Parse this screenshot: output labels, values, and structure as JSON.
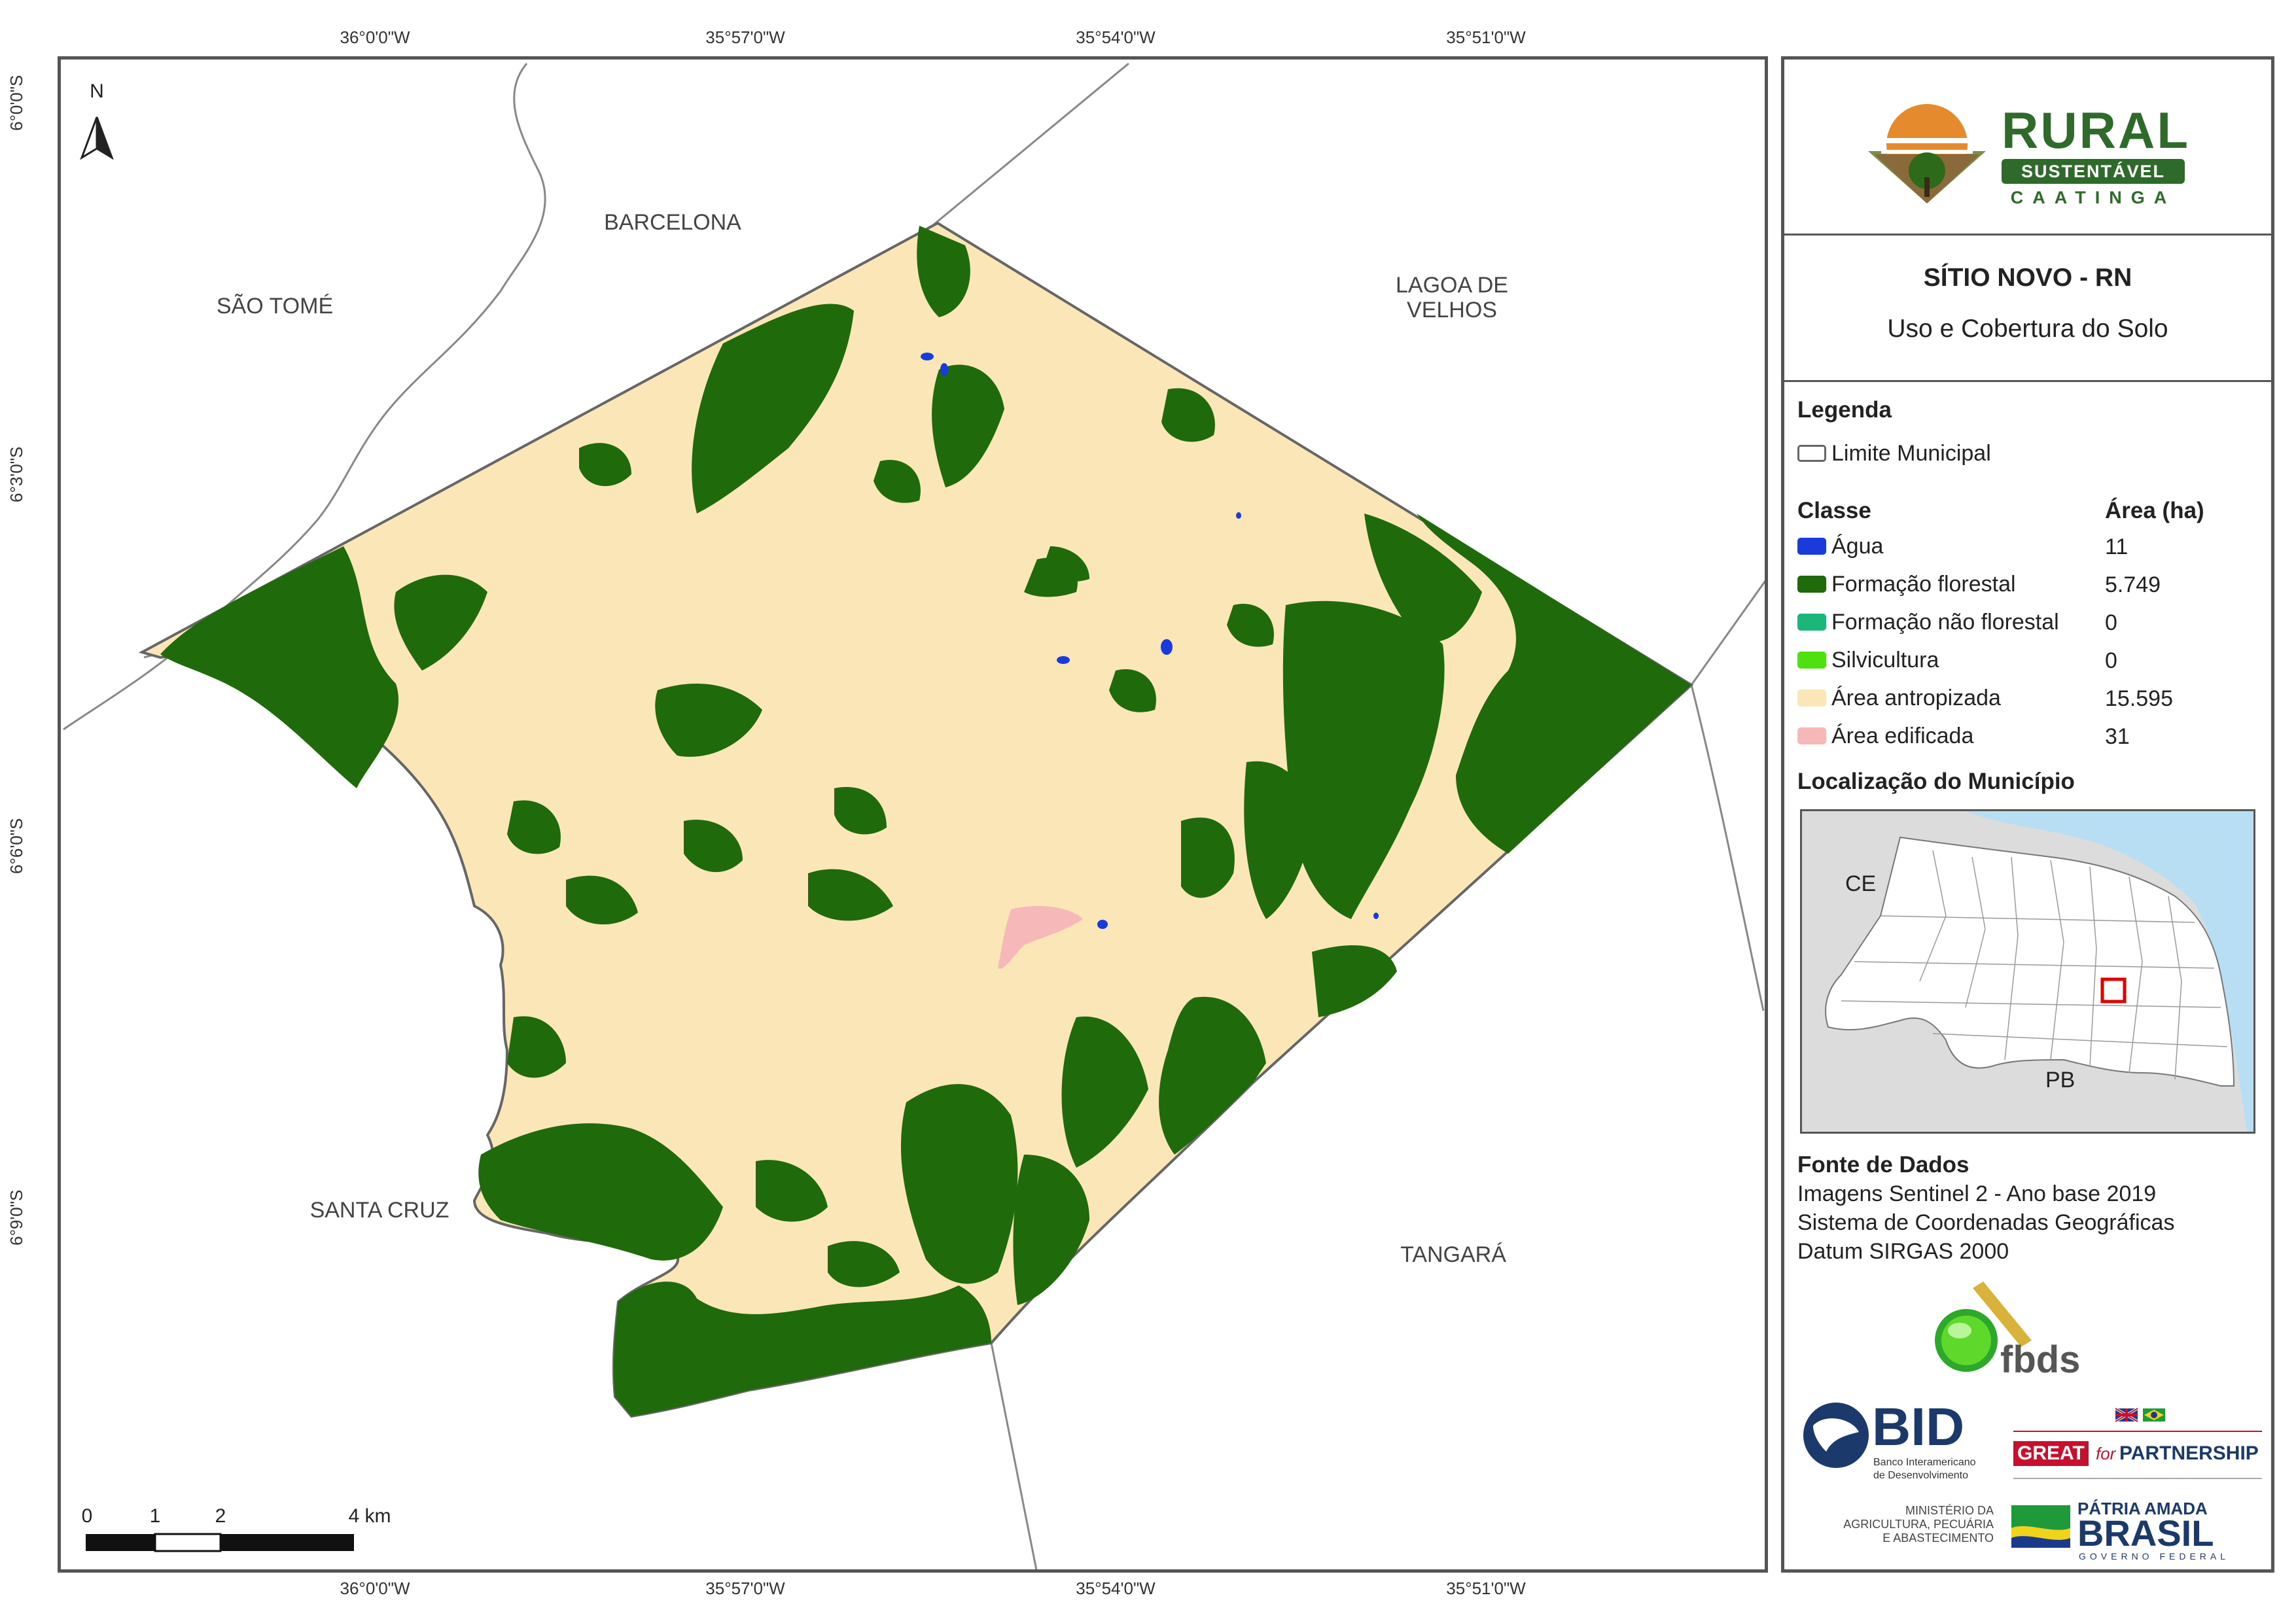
{
  "coordinates": {
    "top": [
      "36°0'0\"W",
      "35°57'0\"W",
      "35°54'0\"W",
      "35°51'0\"W"
    ],
    "bottom": [
      "36°0'0\"W",
      "35°57'0\"W",
      "35°54'0\"W",
      "35°51'0\"W"
    ],
    "left": [
      "6°0'0\"S",
      "6°3'0\"S",
      "6°6'0\"S",
      "6°9'0\"S"
    ]
  },
  "map": {
    "north_label": "N",
    "neighbors": {
      "sao_tome": "SÃO TOMÉ",
      "barcelona": "BARCELONA",
      "lagoa_line1": "LAGOA DE",
      "lagoa_line2": "VELHOS",
      "santa_cruz": "SANTA CRUZ",
      "tangara": "TANGARÁ"
    },
    "scale_labels": [
      "0",
      "1",
      "2",
      "4 km"
    ]
  },
  "panel": {
    "logo": {
      "word1": "RURAL",
      "word2": "SUSTENTÁVEL",
      "word3": "CAATINGA"
    },
    "title": "SÍTIO NOVO - RN",
    "subtitle": "Uso e Cobertura do Solo",
    "legend_title": "Legenda",
    "limit_label": "Limite Municipal",
    "class_header": "Classe",
    "area_header": "Área (ha)",
    "classes": [
      {
        "label": "Água",
        "area": "11",
        "color": "#1a3bdb"
      },
      {
        "label": "Formação florestal",
        "area": "5.749",
        "color": "#1f6a0a"
      },
      {
        "label": "Formação não florestal",
        "area": "0",
        "color": "#1bb77a"
      },
      {
        "label": "Silvicultura",
        "area": "0",
        "color": "#4ee10f"
      },
      {
        "label": "Área antropizada",
        "area": "15.595",
        "color": "#fbe6b8"
      },
      {
        "label": "Área edificada",
        "area": "31",
        "color": "#f6b8b8"
      }
    ],
    "location_title": "Localização do Município",
    "inset": {
      "ce": "CE",
      "pb": "PB"
    },
    "source_title": "Fonte de Dados",
    "source_lines": [
      "Imagens Sentinel 2 - Ano base 2019",
      "Sistema de Coordenadas Geográficas",
      "Datum SIRGAS 2000"
    ],
    "logos": {
      "fbds": "fbds",
      "bid": "BID",
      "bid_sub1": "Banco Interamericano",
      "bid_sub2": "de Desenvolvimento",
      "great": "GREAT",
      "great_for": "for",
      "partnership": "PARTNERSHIP",
      "ministry1": "MINISTÉRIO DA",
      "ministry2": "AGRICULTURA, PECUÁRIA",
      "ministry3": "E ABASTECIMENTO",
      "patria": "PÁTRIA AMADA",
      "brasil": "BRASIL",
      "governo": "GOVERNO FEDERAL"
    }
  }
}
